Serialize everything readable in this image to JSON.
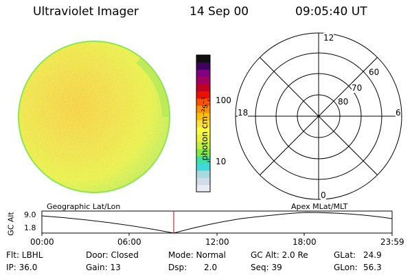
{
  "header": {
    "title": "Ultraviolet Imager",
    "date": "14 Sep 00",
    "time": "09:05:40 UT"
  },
  "colorbar": {
    "unit_label": "photon cm⁻²s⁻¹",
    "tick_100": "100",
    "tick_10": "10",
    "colors": [
      "#e8ecf0",
      "#d0dde8",
      "#a8d8e0",
      "#40d8d8",
      "#40e0a0",
      "#80e840",
      "#c0f040",
      "#e8f040",
      "#ffff40",
      "#ffe040",
      "#ffc000",
      "#ff9000",
      "#ff5000",
      "#e81000",
      "#c00020",
      "#a00060",
      "#800080",
      "#400060",
      "#101010"
    ]
  },
  "polar": {
    "label_12": "12",
    "label_18": "18",
    "label_6": "6",
    "label_0": "0",
    "label_60": "60",
    "label_70": "70",
    "label_80": "80"
  },
  "altitude_plot": {
    "left_caption": "Geographic Lat/Lon",
    "right_caption": "Apex MLat/MLT",
    "ylabel": "GC Alt",
    "ytick_top": "9.0",
    "ytick_bottom": "1.8",
    "xticks": [
      "00:00",
      "06:00",
      "12:00",
      "18:00",
      "23:59"
    ]
  },
  "info": {
    "flt": "Flt: LBHL",
    "door": "Door: Closed",
    "mode": "Mode: Normal",
    "gcalt": "GC Alt: 2.0 Re",
    "glat_label": "GLat:",
    "glat_val": "24.9",
    "ip": "IP: 36.0",
    "gain": "Gain: 13",
    "dsp_label": "Dsp:",
    "dsp_val": "2.0",
    "seq": "Seq: 39",
    "glon_label": "GLon:",
    "glon_val": "56.3"
  },
  "colors": {
    "earth_base": "#e6f048",
    "earth_warm": "#f5cf3c",
    "earth_edge": "#8ce650",
    "marker": "#c00000"
  }
}
